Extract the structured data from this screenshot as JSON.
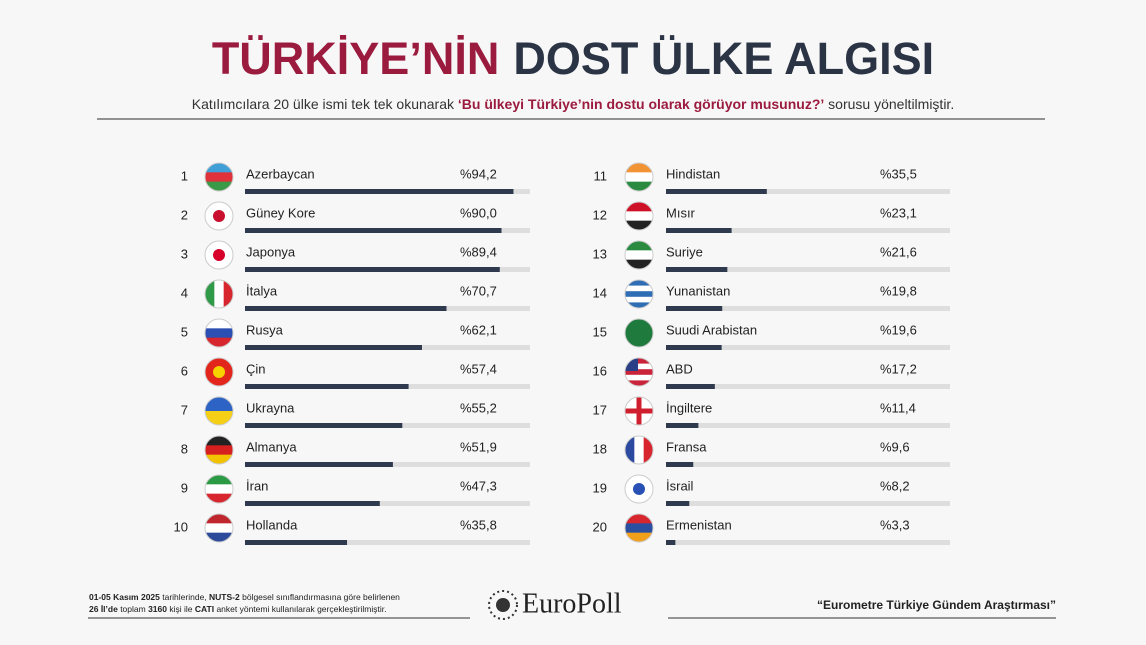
{
  "chart_data": {
    "type": "bar",
    "title": [
      "TÜRKİYE’NİN",
      "DOST ÜLKE ALGISI"
    ],
    "subtitle": [
      "Katılımcılara 20 ülke ismi tek tek okunarak ",
      "‘Bu ülkeyi Türkiye’nin dostu olarak görüyor musunuz?’",
      " sorusu yöneltilmiştir."
    ],
    "ranks": [
      1,
      2,
      3,
      4,
      5,
      6,
      7,
      8,
      9,
      10,
      11,
      12,
      13,
      14,
      15,
      16,
      17,
      18,
      19,
      20
    ],
    "categories": [
      "Azerbaycan",
      "Güney Kore",
      "Japonya",
      "İtalya",
      "Rusya",
      "Çin",
      "Ukrayna",
      "Almanya",
      "İran",
      "Hollanda",
      "Hindistan",
      "Mısır",
      "Suriye",
      "Yunanistan",
      "Suudi Arabistan",
      "ABD",
      "İngiltere",
      "Fransa",
      "İsrail",
      "Ermenistan"
    ],
    "values": [
      94.2,
      90.0,
      89.4,
      70.7,
      62.1,
      57.4,
      55.2,
      51.9,
      47.3,
      35.8,
      35.5,
      23.1,
      21.6,
      19.8,
      19.6,
      17.2,
      11.4,
      9.6,
      8.2,
      3.3
    ],
    "value_labels": [
      "%94,2",
      "%90,0",
      "%89,4",
      "%70,7",
      "%62,1",
      "%57,4",
      "%55,2",
      "%51,9",
      "%47,3",
      "%35,8",
      "%35,5",
      "%23,1",
      "%21,6",
      "%19,8",
      "%19,6",
      "%17,2",
      "%11,4",
      "%9,6",
      "%8,2",
      "%3,3"
    ],
    "xlim": [
      0,
      100
    ],
    "color": "#2f3a4f",
    "track_color": "#dedede"
  },
  "footer": {
    "note": [
      [
        "01-05 Kasım 2025",
        " tarihlerinde, ",
        "NUTS-2",
        " bölgesel sınıflandırmasına göre belirlenen"
      ],
      [
        "26 İl’de",
        " toplam ",
        "3160",
        " kişi ile ",
        "CATI",
        " anket yöntemi kullanılarak gerçekleştirilmiştir."
      ]
    ],
    "logo": "EuroPoll",
    "source": "“Eurometre Türkiye Gündem Araştırması”"
  }
}
